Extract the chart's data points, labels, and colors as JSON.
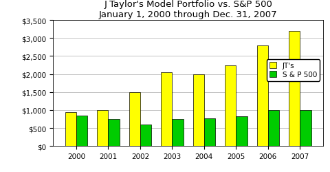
{
  "title_line1": "J Taylor's Model Portfolio vs. S&P 500",
  "title_line2": "January 1, 2000 through Dec. 31, 2007",
  "years": [
    2000,
    2001,
    2002,
    2003,
    2004,
    2005,
    2006,
    2007
  ],
  "jts_values": [
    950,
    1000,
    1500,
    2050,
    2000,
    2250,
    2800,
    3200
  ],
  "sp500_values": [
    850,
    750,
    600,
    750,
    780,
    820,
    1000,
    1000
  ],
  "jts_color": "#FFFF00",
  "sp500_color": "#00CC00",
  "bar_edge_color": "#000000",
  "background_color": "#FFFFFF",
  "ylim": [
    0,
    3500
  ],
  "yticks": [
    0,
    500,
    1000,
    1500,
    2000,
    2500,
    3000,
    3500
  ],
  "legend_labels": [
    "JT's",
    "S & P 500"
  ],
  "bar_width": 0.35,
  "title_fontsize": 9.5,
  "tick_fontsize": 7.5,
  "legend_fontsize": 7.5
}
